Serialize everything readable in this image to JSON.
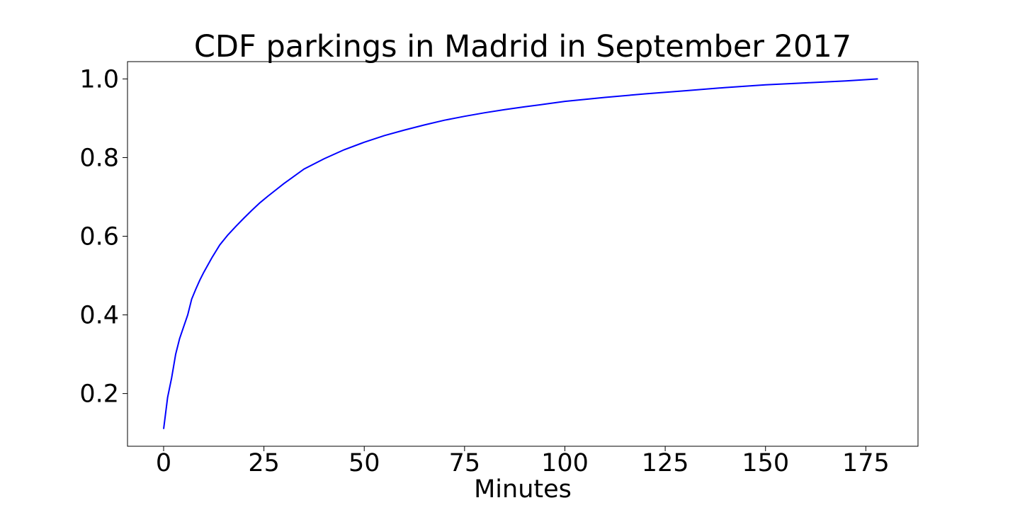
{
  "chart_data": {
    "type": "line",
    "title": "CDF parkings in Madrid in September 2017",
    "xlabel": "Minutes",
    "ylabel": "",
    "xlim": [
      -9,
      188
    ],
    "ylim": [
      0.066,
      1.044
    ],
    "xticks": [
      0,
      25,
      50,
      75,
      100,
      125,
      150,
      175
    ],
    "xtick_labels": [
      "0",
      "25",
      "50",
      "75",
      "100",
      "125",
      "150",
      "175"
    ],
    "yticks": [
      0.2,
      0.4,
      0.6,
      0.8,
      1.0
    ],
    "ytick_labels": [
      "0.2",
      "0.4",
      "0.6",
      "0.8",
      "1.0"
    ],
    "grid": false,
    "series": [
      {
        "color": "#0000ff",
        "x": [
          0,
          1,
          2,
          3,
          4,
          5,
          6,
          7,
          8,
          9,
          10,
          12,
          14,
          16,
          18,
          20,
          22,
          24,
          26,
          28,
          30,
          35,
          40,
          45,
          50,
          55,
          60,
          65,
          70,
          75,
          80,
          85,
          90,
          95,
          100,
          110,
          120,
          130,
          140,
          150,
          160,
          170,
          178
        ],
        "y": [
          0.11,
          0.19,
          0.24,
          0.3,
          0.34,
          0.37,
          0.4,
          0.44,
          0.465,
          0.488,
          0.508,
          0.545,
          0.578,
          0.603,
          0.625,
          0.646,
          0.666,
          0.685,
          0.702,
          0.718,
          0.734,
          0.771,
          0.797,
          0.82,
          0.839,
          0.856,
          0.87,
          0.883,
          0.895,
          0.905,
          0.914,
          0.922,
          0.929,
          0.936,
          0.943,
          0.953,
          0.962,
          0.97,
          0.978,
          0.985,
          0.99,
          0.995,
          1.0
        ]
      }
    ]
  }
}
